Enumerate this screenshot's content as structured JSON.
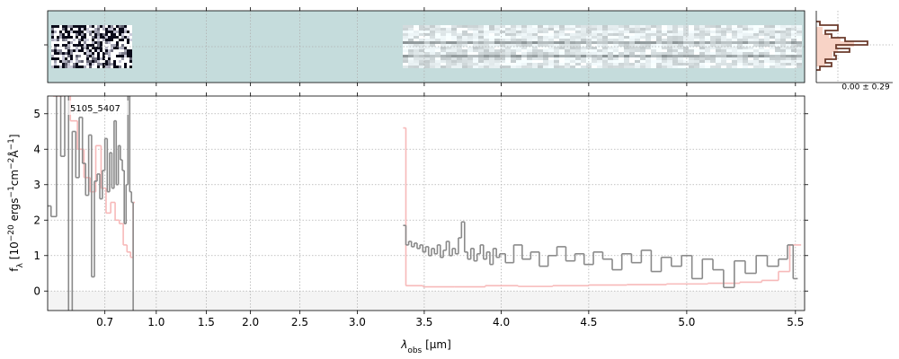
{
  "chart_data": {
    "type": "step",
    "label": "5105_5407",
    "xlabel": [
      "λ",
      "obs",
      " [μm]"
    ],
    "ylabel": [
      "f",
      "λ",
      " [10",
      "−20",
      " ergs",
      "−1",
      "cm",
      "−2",
      "Å",
      "−1",
      "]"
    ],
    "xlim": [
      0.53,
      5.54
    ],
    "ylim": [
      -0.55,
      5.5
    ],
    "xticks": [
      0.7,
      {
        "value": 1,
        "label": "1.0"
      },
      1.5,
      {
        "value": 2,
        "label": "2.0"
      },
      2.5,
      {
        "value": 3,
        "label": "3.0"
      },
      3.5,
      {
        "value": 4,
        "label": "4.0"
      },
      4.5,
      {
        "value": 5,
        "label": "5.0"
      },
      5.5
    ],
    "yticks": [
      0,
      1,
      2,
      3,
      4,
      5
    ],
    "grid": true,
    "histogram_label": "0.00 ± 0.29",
    "series": [
      {
        "color": "#f7b9b9",
        "x": [
          0.53,
          0.555,
          0.575,
          0.595,
          0.615,
          0.635,
          0.655,
          0.675,
          0.695,
          0.715,
          0.735,
          0.755,
          0.775,
          0.795,
          0.815,
          0.835,
          0.845,
          2.0,
          3.36,
          3.38,
          3.6,
          3.8,
          4.0,
          4.2,
          4.4,
          4.6,
          4.8,
          5.0,
          5.2,
          5.3,
          5.4,
          5.45,
          5.5
        ],
        "values": [
          6,
          5.5,
          6,
          4.8,
          4.0,
          3.2,
          2.8,
          4.1,
          2.9,
          2.2,
          2.5,
          2.0,
          1.9,
          1.3,
          1.1,
          0.95,
          2.5,
          null,
          4.6,
          0.15,
          0.12,
          0.12,
          0.15,
          0.13,
          0.15,
          0.17,
          0.18,
          0.2,
          0.22,
          0.25,
          0.3,
          0.55,
          1.3
        ]
      },
      {
        "color": "#8a8a8a",
        "x": [
          0.53,
          0.545,
          0.555,
          0.565,
          0.575,
          0.585,
          0.595,
          0.605,
          0.615,
          0.625,
          0.635,
          0.645,
          0.655,
          0.665,
          0.675,
          0.685,
          0.695,
          0.705,
          0.715,
          0.725,
          0.735,
          0.745,
          0.755,
          0.765,
          0.775,
          0.785,
          0.795,
          0.805,
          0.815,
          0.825,
          0.835,
          0.845,
          2.0,
          3.36,
          3.38,
          3.4,
          3.42,
          3.44,
          3.46,
          3.48,
          3.5,
          3.52,
          3.54,
          3.56,
          3.58,
          3.6,
          3.62,
          3.64,
          3.66,
          3.68,
          3.7,
          3.72,
          3.74,
          3.76,
          3.78,
          3.8,
          3.82,
          3.84,
          3.86,
          3.88,
          3.9,
          3.92,
          3.94,
          3.96,
          3.98,
          4.0,
          4.05,
          4.1,
          4.15,
          4.2,
          4.25,
          4.3,
          4.35,
          4.4,
          4.45,
          4.5,
          4.55,
          4.6,
          4.65,
          4.7,
          4.75,
          4.8,
          4.85,
          4.9,
          4.95,
          5.0,
          5.05,
          5.1,
          5.15,
          5.2,
          5.25,
          5.3,
          5.35,
          5.4,
          5.45,
          5.48,
          5.5
        ],
        "values": [
          2.4,
          2.1,
          6,
          3.8,
          5.9,
          -1,
          4.5,
          3.2,
          4.9,
          3.6,
          2.7,
          4.4,
          0.4,
          3.1,
          3.3,
          2.6,
          3.4,
          4.3,
          2.8,
          3.9,
          2.9,
          4.8,
          3.0,
          4.1,
          3.7,
          3.4,
          1.9,
          3.0,
          5.9,
          2.8,
          2.5,
          -1,
          null,
          1.85,
          1.3,
          1.4,
          1.25,
          1.35,
          1.2,
          1.3,
          1.1,
          1.25,
          1.0,
          1.2,
          1.05,
          1.3,
          0.95,
          1.15,
          1.4,
          1.0,
          1.2,
          1.05,
          1.5,
          1.95,
          1.1,
          0.9,
          1.2,
          0.85,
          1.05,
          1.3,
          0.9,
          1.1,
          0.75,
          1.2,
          0.95,
          1.05,
          0.8,
          1.3,
          0.9,
          1.1,
          0.7,
          1.0,
          1.25,
          0.85,
          1.05,
          0.75,
          1.1,
          0.9,
          0.6,
          1.05,
          0.8,
          1.15,
          0.55,
          0.95,
          0.7,
          1.0,
          0.35,
          0.9,
          0.6,
          0.1,
          0.85,
          0.5,
          1.0,
          0.7,
          0.9,
          1.3,
          0.35
        ]
      }
    ]
  }
}
